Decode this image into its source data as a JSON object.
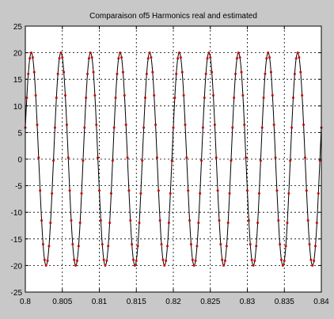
{
  "colors": {
    "figure_background": "#c8c8c8",
    "axes_background": "#ffffff",
    "line_color": "#000000",
    "marker_color": "#cc0000",
    "grid_color": "#000000"
  },
  "chart_data": {
    "type": "line",
    "title": "Comparaison of5  Harmonics real and estimated",
    "xlabel": "",
    "ylabel": "",
    "xlim": [
      0.8,
      0.84
    ],
    "ylim": [
      -25,
      25
    ],
    "grid": true,
    "legend": "none",
    "xticks": [
      0.8,
      0.805,
      0.81,
      0.815,
      0.82,
      0.825,
      0.83,
      0.835,
      0.84
    ],
    "yticks": [
      -25,
      -20,
      -15,
      -10,
      -5,
      0,
      5,
      10,
      15,
      20,
      25
    ],
    "xtick_labels": [
      "0.8",
      "0.805",
      "0.81",
      "0.815",
      "0.82",
      "0.825",
      "0.83",
      "0.835",
      "0.84"
    ],
    "ytick_labels": [
      "-25",
      "-20",
      "-15",
      "-10",
      "-5",
      "0",
      "5",
      "10",
      "15",
      "20",
      "25"
    ],
    "series": [
      {
        "style": "solid-line",
        "function": {
          "kind": "sine",
          "amplitude": 20,
          "frequency_hz": 250,
          "phase_rad": 0.3,
          "x_start": 0.8,
          "x_end": 0.84
        }
      },
      {
        "style": "dot-markers",
        "function": {
          "kind": "sine",
          "amplitude": 20,
          "frequency_hz": 250,
          "phase_rad": 0.3,
          "x_start": 0.8,
          "x_end": 0.84,
          "sample_step": 0.0002
        }
      }
    ]
  }
}
